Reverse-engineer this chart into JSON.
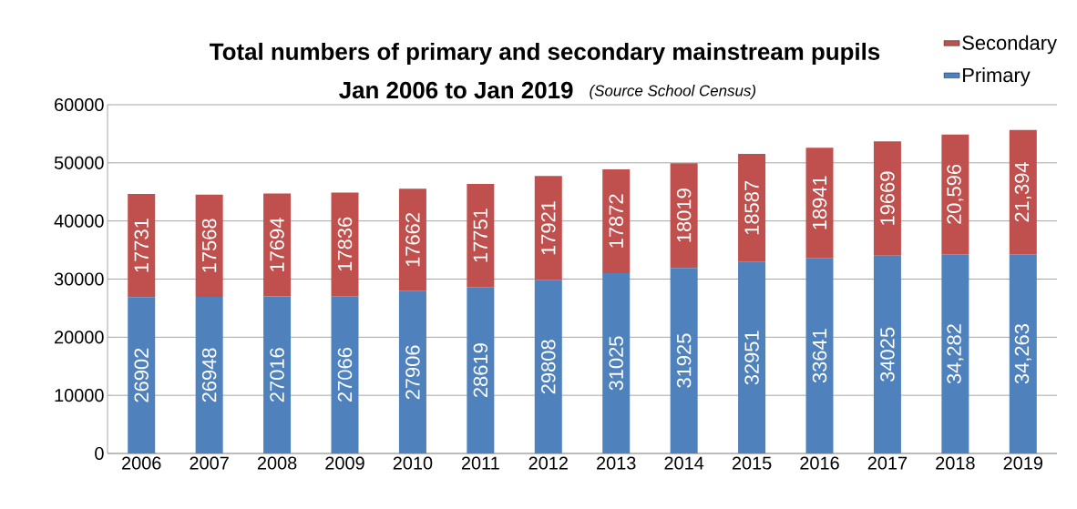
{
  "chart_data": {
    "type": "bar",
    "stacked": true,
    "title": "Total numbers of primary and secondary mainstream pupils",
    "subtitle": "Jan 2006 to Jan 2019",
    "annotations": [
      "(Source School Census)"
    ],
    "categories": [
      "2006",
      "2007",
      "2008",
      "2009",
      "2010",
      "2011",
      "2012",
      "2013",
      "2014",
      "2015",
      "2016",
      "2017",
      "2018",
      "2019"
    ],
    "series": [
      {
        "name": "Primary",
        "color": "#4f81bd",
        "values": [
          26902,
          26948,
          27016,
          27066,
          27906,
          28619,
          29808,
          31025,
          31925,
          32951,
          33641,
          34025,
          34282,
          34263
        ],
        "value_labels": [
          "26902",
          "26948",
          "27016",
          "27066",
          "27906",
          "28619",
          "29808",
          "31025",
          "31925",
          "32951",
          "33641",
          "34025",
          "34,282",
          "34,263"
        ]
      },
      {
        "name": "Secondary",
        "color": "#c0504d",
        "values": [
          17731,
          17568,
          17694,
          17836,
          17662,
          17751,
          17921,
          17872,
          18019,
          18587,
          18941,
          19669,
          20596,
          21394
        ],
        "value_labels": [
          "17731",
          "17568",
          "17694",
          "17836",
          "17662",
          "17751",
          "17921",
          "17872",
          "18019",
          "18587",
          "18941",
          "19669",
          "20,596",
          "21,394"
        ]
      }
    ],
    "ylim": [
      0,
      60000
    ],
    "yticks": [
      0,
      10000,
      20000,
      30000,
      40000,
      50000,
      60000
    ],
    "grid": "y",
    "legend": "top right"
  }
}
